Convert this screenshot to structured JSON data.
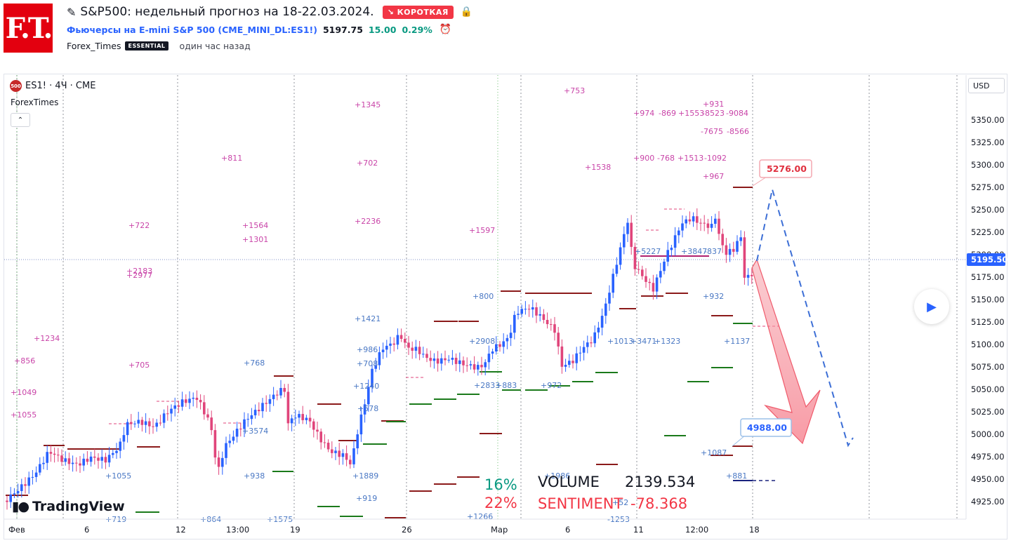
{
  "header": {
    "logo_text": "F.T.",
    "title": "S&P500: недельный прогноз на 18-22.03.2024.",
    "badge": "↘ КОРОТКАЯ",
    "symbol_name": "Фьючерсы на E-mini S&P 500",
    "symbol_ticker": "(CME_MINI_DL:ES1!)",
    "price": "5197.75",
    "change": "15.00",
    "change_pct": "0.29%",
    "author": "Forex_Times",
    "author_badge": "ESSENTIAL",
    "time_ago": "один час назад"
  },
  "chart": {
    "legend": "ES1! · 4Ч · CME",
    "legend_icon": "500",
    "indicator": "ForexTimes",
    "currency": "USD",
    "current_price": "5195.50",
    "brand": "TradingView",
    "colors": {
      "up": "#2962ff",
      "down": "#e0457b",
      "red_level": "#8b1a1a",
      "green_level": "#1b7a1b",
      "accent": "#f23645"
    }
  },
  "chart_data": {
    "type": "candlestick",
    "yaxis_ticks": [
      "5350.00",
      "5325.00",
      "5300.00",
      "5275.00",
      "5250.00",
      "5225.00",
      "5200.00",
      "5175.00",
      "5150.00",
      "5125.00",
      "5100.00",
      "5075.00",
      "5050.00",
      "5025.00",
      "5000.00",
      "4975.00",
      "4950.00",
      "4925.00"
    ],
    "xaxis_ticks": [
      "Фев",
      "6",
      "12",
      "13:00",
      "19",
      "26",
      "Мар",
      "6",
      "11",
      "12:00",
      "18"
    ],
    "target_high": "5276.00",
    "target_low": "4988.00",
    "stats": {
      "pct_up": "16%",
      "pct_down": "22%",
      "volume_label": "VOLUME",
      "volume_value": "2139.534",
      "sentiment_label": "SENTIMENT",
      "sentiment_value": "-78.368"
    },
    "pink_labels": [
      "+856",
      "+1049",
      "+1055",
      "+1234",
      "+722",
      "+2183",
      "+2977",
      "+705",
      "+811",
      "+1564",
      "+1301",
      "+1345",
      "+702",
      "+2236",
      "+1597",
      "+753",
      "+974",
      "-869",
      "+1553",
      "-8523",
      "-9084",
      "+931",
      "-7675",
      "-8566",
      "+900",
      "-768",
      "+1513",
      "-1092",
      "+1538",
      "+967"
    ],
    "blue_labels": [
      "+768",
      "+1421",
      "+986",
      "+708",
      "+1240",
      "+578",
      "+3574",
      "+938",
      "+1055",
      "+1889",
      "+919",
      "+2908",
      "+2833",
      "+883",
      "+972",
      "+1013",
      "+3471",
      "+1323",
      "+932",
      "+1137",
      "+1087",
      "+881",
      "+1266",
      "+1986",
      "+52",
      "-1253",
      "+719",
      "+864",
      "+1575",
      "+800",
      "+5227",
      "+3847",
      "-837"
    ]
  }
}
